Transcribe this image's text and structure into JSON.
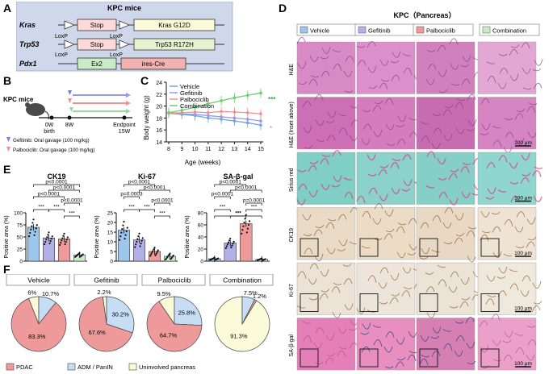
{
  "panel_letters": {
    "A": "A",
    "B": "B",
    "C": "C",
    "D": "D",
    "E": "E",
    "F": "F"
  },
  "colors": {
    "vehicle": "#9ec5ea",
    "gefitinib": "#b3b0e8",
    "palbociclib": "#ef9a9a",
    "combination": "#c9ecc7",
    "pdac": "#ef9a9a",
    "adm": "#c6ddf3",
    "uninvolved": "#fbfbd9",
    "boxA": "#cfd8ea",
    "he": "#d97ec0",
    "sirius_pink": "#e05c9b",
    "sirius_teal": "#79cfc8",
    "ihc_bg": "#ecdcc8",
    "ihc_brown": "#9c6a34"
  },
  "panelA": {
    "title": "KPC mice",
    "rows": [
      {
        "gene": "Kras",
        "stop": "Stop",
        "mut": "Kras G12D",
        "loxp1": "LoxP",
        "loxp2": "LoxP"
      },
      {
        "gene": "Trp53",
        "stop": "Stop",
        "mut": "Trp53 R172H",
        "loxp1": "LoxP",
        "loxp2": "LoxP"
      },
      {
        "gene": "Pdx1",
        "ex2": "Ex2",
        "cre": "ires-Cre"
      }
    ]
  },
  "panelB": {
    "label": "KPC mice",
    "t0": "0W",
    "t0_sub": "birth",
    "t1": "8W",
    "end": "Endpoint",
    "end_sub": "15W",
    "legend": [
      "Gefitinib: Oral gavage (100 mg/kg)",
      "Palbociclib: Oral gavage (100 mg/kg)"
    ]
  },
  "chart_data": [
    {
      "type": "line",
      "title": "",
      "xlabel": "Age (weeks)",
      "ylabel": "Body weight (g)",
      "x": [
        8,
        9,
        10,
        11,
        12,
        13,
        14,
        15
      ],
      "ylim": [
        14,
        24
      ],
      "yticks": [
        14,
        16,
        18,
        20,
        22,
        24
      ],
      "series": [
        {
          "name": "Vehicle",
          "values": [
            18.8,
            18.6,
            18.4,
            18.0,
            17.8,
            17.5,
            17.2,
            16.8
          ]
        },
        {
          "name": "Gefitinib",
          "values": [
            18.9,
            18.7,
            18.6,
            18.4,
            18.2,
            18.0,
            17.8,
            17.5
          ]
        },
        {
          "name": "Palbociclib",
          "values": [
            18.8,
            18.9,
            19.0,
            18.9,
            19.1,
            19.0,
            18.9,
            18.7
          ]
        },
        {
          "name": "Combination",
          "values": [
            18.9,
            19.3,
            19.8,
            20.4,
            20.9,
            21.4,
            21.8,
            22.2
          ]
        }
      ],
      "annotations": [
        "***",
        "*"
      ]
    },
    {
      "type": "bar",
      "title": "CK19",
      "ylabel": "Positive area (%)",
      "categories": [
        "Vehicle",
        "Gefitinib",
        "Palbociclib",
        "Combination"
      ],
      "values": [
        70,
        48,
        46,
        13
      ],
      "ylim": [
        0,
        100
      ],
      "yticks": [
        0,
        25,
        50,
        75,
        100
      ],
      "pvalues": [
        "p<0.0001",
        "p<0.0001",
        "p<0.0001",
        "p<0.0001",
        "***",
        "***",
        "***"
      ]
    },
    {
      "type": "bar",
      "title": "Ki-67",
      "ylabel": "Positive area (%)",
      "categories": [
        "Vehicle",
        "Gefitinib",
        "Palbociclib",
        "Combination"
      ],
      "values": [
        16,
        11,
        5,
        2.5
      ],
      "ylim": [
        0,
        25
      ],
      "yticks": [
        0,
        5,
        10,
        15,
        20,
        25
      ],
      "pvalues": [
        "p<0.0001",
        "p<0.0001",
        "p=0.0003",
        "p<0.0001",
        "***",
        "***",
        "***"
      ]
    },
    {
      "type": "bar",
      "title": "SA-β-gal",
      "ylabel": "Positive area (%)",
      "categories": [
        "Vehicle",
        "Gefitinib",
        "Palbociclib",
        "Combination"
      ],
      "values": [
        4,
        30,
        62,
        3
      ],
      "ylim": [
        0,
        80
      ],
      "yticks": [
        0,
        20,
        40,
        60,
        80
      ],
      "pvalues": [
        "p<0.0001",
        "p<0.0001",
        "p<0.0001",
        "p=0.0001",
        "***",
        "***",
        "***",
        "***"
      ]
    },
    {
      "type": "pie",
      "groups": [
        {
          "title": "Vehicle",
          "slices": [
            {
              "name": "PDAC",
              "value": 83.3,
              "label": "83.3%"
            },
            {
              "name": "ADM / PanIN",
              "value": 10.7,
              "label": "10.7%"
            },
            {
              "name": "Uninvolved pancreas",
              "value": 6.0,
              "label": "6%"
            }
          ]
        },
        {
          "title": "Gefitinib",
          "slices": [
            {
              "name": "PDAC",
              "value": 67.6,
              "label": "67.6%"
            },
            {
              "name": "ADM / PanIN",
              "value": 30.2,
              "label": "30.2%"
            },
            {
              "name": "Uninvolved pancreas",
              "value": 2.2,
              "label": "2.2%"
            }
          ]
        },
        {
          "title": "Palbociclib",
          "slices": [
            {
              "name": "PDAC",
              "value": 64.7,
              "label": "64.7%"
            },
            {
              "name": "ADM / PanIN",
              "value": 25.8,
              "label": "25.8%"
            },
            {
              "name": "Uninvolved pancreas",
              "value": 9.5,
              "label": "9.5%"
            }
          ]
        },
        {
          "title": "Combination",
          "slices": [
            {
              "name": "PDAC",
              "value": 1.2,
              "label": "1.2%"
            },
            {
              "name": "ADM / PanIN",
              "value": 7.5,
              "label": "7.5%"
            },
            {
              "name": "Uninvolved pancreas",
              "value": 91.3,
              "label": "91.3%"
            }
          ]
        }
      ],
      "legend": [
        "PDAC",
        "ADM / PanIN",
        "Uninvolved pancreas"
      ]
    }
  ],
  "panelD": {
    "title": "KPC（Pancreas）",
    "columns": [
      "Vehicle",
      "Gefitinib",
      "Palbociclib",
      "Combination"
    ],
    "rows": [
      "H&E",
      "H&E (Inset above)",
      "Sirius red",
      "CK19",
      "Ki-67",
      "SA-β-gal"
    ],
    "scale": "100 μm"
  }
}
